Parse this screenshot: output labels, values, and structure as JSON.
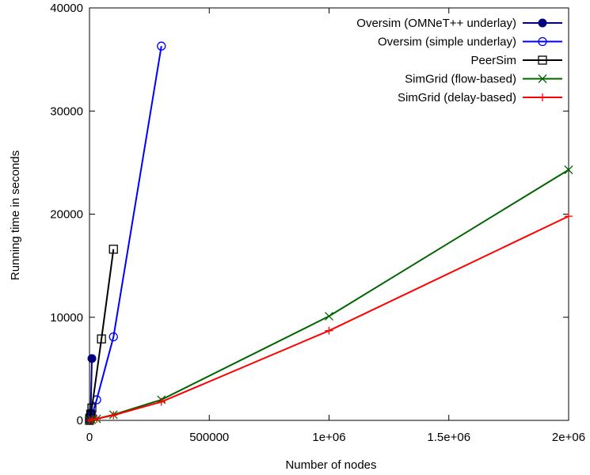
{
  "chart_data": {
    "type": "line",
    "title": "",
    "xlabel": "Number of nodes",
    "ylabel": "Running time in seconds",
    "xlim": [
      0,
      2000000
    ],
    "ylim": [
      0,
      40000
    ],
    "x_ticks": [
      0,
      500000,
      1000000,
      1500000,
      2000000
    ],
    "x_tick_labels": [
      "0",
      "500000",
      "1e+06",
      "1.5e+06",
      "2e+06"
    ],
    "y_ticks": [
      0,
      10000,
      20000,
      30000,
      40000
    ],
    "y_tick_labels": [
      "0",
      "10000",
      "20000",
      "30000",
      "40000"
    ],
    "grid": false,
    "legend_position": "top-right",
    "series": [
      {
        "name": "Oversim (OMNeT++ underlay)",
        "color": "#000080",
        "marker": "filled-circle",
        "points": [
          [
            0,
            0
          ],
          [
            1000,
            200
          ],
          [
            3000,
            500
          ],
          [
            5000,
            700
          ],
          [
            10000,
            6000
          ]
        ]
      },
      {
        "name": "Oversim (simple underlay)",
        "color": "#0000ff",
        "marker": "open-circle",
        "points": [
          [
            0,
            0
          ],
          [
            3000,
            200
          ],
          [
            10000,
            500
          ],
          [
            30000,
            2000
          ],
          [
            100000,
            8100
          ],
          [
            300000,
            36300
          ]
        ]
      },
      {
        "name": "PeerSim",
        "color": "#000000",
        "marker": "open-square",
        "points": [
          [
            0,
            0
          ],
          [
            1000,
            200
          ],
          [
            5000,
            600
          ],
          [
            10000,
            1200
          ],
          [
            50000,
            7900
          ],
          [
            100000,
            16600
          ]
        ]
      },
      {
        "name": "SimGrid (flow-based)",
        "color": "#006400",
        "marker": "x",
        "points": [
          [
            0,
            0
          ],
          [
            10000,
            50
          ],
          [
            30000,
            150
          ],
          [
            100000,
            550
          ],
          [
            300000,
            2000
          ],
          [
            1000000,
            10100
          ],
          [
            2000000,
            24300
          ]
        ]
      },
      {
        "name": "SimGrid (delay-based)",
        "color": "#ff0000",
        "marker": "plus",
        "points": [
          [
            0,
            0
          ],
          [
            10000,
            50
          ],
          [
            30000,
            150
          ],
          [
            100000,
            500
          ],
          [
            300000,
            1800
          ],
          [
            1000000,
            8700
          ],
          [
            2000000,
            19800
          ]
        ]
      }
    ]
  }
}
